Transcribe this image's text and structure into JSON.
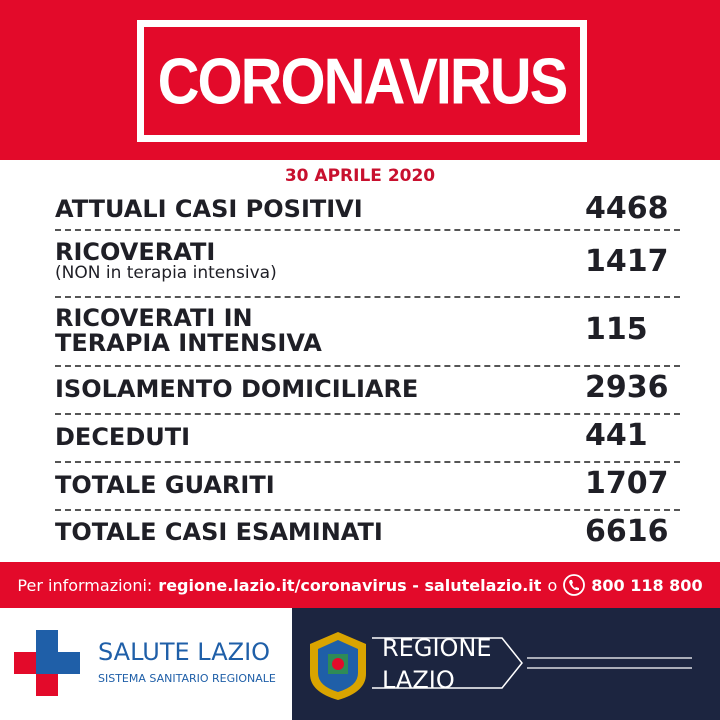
{
  "header": {
    "title": "CORONAVIRUS"
  },
  "date": "30 APRILE 2020",
  "rows": [
    {
      "lines": [
        "ATTUALI CASI POSITIVI"
      ],
      "value": 4468
    },
    {
      "lines": [
        "RICOVERATI"
      ],
      "note": "(NON in terapia intensiva)",
      "value": 1417
    },
    {
      "lines": [
        "RICOVERATI IN",
        "TERAPIA INTENSIVA"
      ],
      "value": 115
    },
    {
      "lines": [
        "ISOLAMENTO DOMICILIARE"
      ],
      "value": 2936
    },
    {
      "lines": [
        "DECEDUTI"
      ],
      "value": 441
    },
    {
      "lines": [
        "TOTALE GUARITI"
      ],
      "value": 1707
    },
    {
      "lines": [
        "TOTALE CASI ESAMINATI"
      ],
      "value": 6616
    }
  ],
  "info": {
    "prefix": "Per informazioni:",
    "links": "regione.lazio.it/coronavirus - salutelazio.it",
    "or": "o",
    "phone": "800 118 800"
  },
  "logos": {
    "salute_title": "SALUTE LAZIO",
    "salute_sub": "SISTEMA SANITARIO REGIONALE",
    "regione_line1": "REGIONE",
    "regione_line2": "LAZIO"
  }
}
